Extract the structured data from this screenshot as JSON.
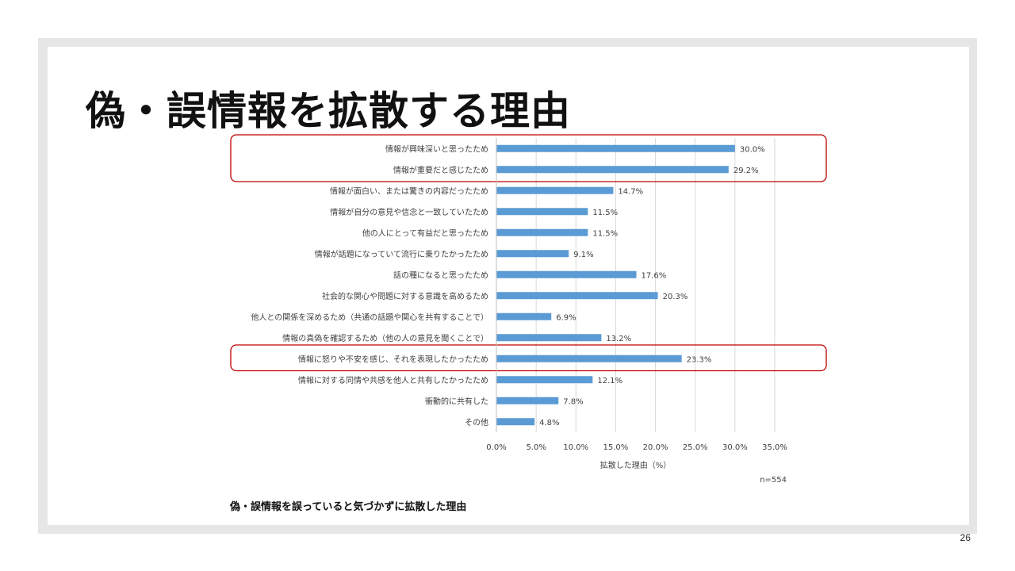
{
  "slide": {
    "title": "偽・誤情報を拡散する理由",
    "caption": "偽・誤情報を誤っていると気づかずに拡散した理由",
    "page_number": "26",
    "sample_note": "n=554"
  },
  "chart_data": {
    "type": "bar",
    "orientation": "horizontal",
    "categories": [
      "情報が興味深いと思ったため",
      "情報が重要だと感じたため",
      "情報が面白い、または驚きの内容だったため",
      "情報が自分の意見や信念と一致していたため",
      "他の人にとって有益だと思ったため",
      "情報が話題になっていて流行に乗りたかったため",
      "話の種になると思ったため",
      "社会的な関心や問題に対する意識を高めるため",
      "他人との関係を深めるため（共通の話題や関心を共有することで）",
      "情報の真偽を確認するため（他の人の意見を聞くことで）",
      "情報に怒りや不安を感じ、それを表現したかったため",
      "情報に対する同情や共感を他人と共有したかったため",
      "衝動的に共有した",
      "その他"
    ],
    "values": [
      30.0,
      29.2,
      14.7,
      11.5,
      11.5,
      9.1,
      17.6,
      20.3,
      6.9,
      13.2,
      23.3,
      12.1,
      7.8,
      4.8
    ],
    "value_labels": [
      "30.0%",
      "29.2%",
      "14.7%",
      "11.5%",
      "11.5%",
      "9.1%",
      "17.6%",
      "20.3%",
      "6.9%",
      "13.2%",
      "23.3%",
      "12.1%",
      "7.8%",
      "4.8%"
    ],
    "xlim": [
      0,
      35
    ],
    "x_ticks": [
      0,
      5,
      10,
      15,
      20,
      25,
      30,
      35
    ],
    "x_tick_labels": [
      "0.0%",
      "5.0%",
      "10.0%",
      "15.0%",
      "20.0%",
      "25.0%",
      "30.0%",
      "35.0%"
    ],
    "xlabel": "拡散した理由（%）",
    "grid": "vertical",
    "bar_color": "#5b9bd5",
    "highlight_color": "#c00000",
    "highlight_groups": [
      [
        0,
        1
      ],
      [
        10
      ]
    ]
  }
}
